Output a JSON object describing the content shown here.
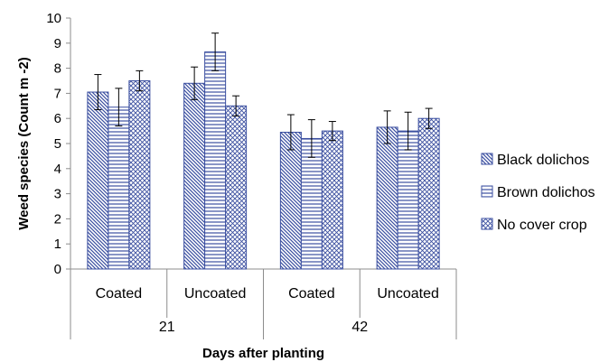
{
  "chart_data": {
    "type": "bar",
    "title": "",
    "ylabel": "Weed species (Count m -2)",
    "xlabel": "Days after planting",
    "ylim": [
      0,
      10
    ],
    "yticks": [
      0,
      1,
      2,
      3,
      4,
      5,
      6,
      7,
      8,
      9,
      10
    ],
    "groups": [
      {
        "label": "21",
        "categories": [
          "Coated",
          "Uncoated"
        ]
      },
      {
        "label": "42",
        "categories": [
          "Coated",
          "Uncoated"
        ]
      }
    ],
    "categories": [
      "Coated",
      "Uncoated",
      "Coated",
      "Uncoated"
    ],
    "series": [
      {
        "name": "Black dolichos",
        "pattern": "diagonal",
        "color": "#3B4FA0",
        "values": [
          7.05,
          7.4,
          5.45,
          5.65
        ],
        "errors": [
          0.7,
          0.65,
          0.7,
          0.65
        ]
      },
      {
        "name": "Brown dolichos",
        "pattern": "horizontal",
        "color": "#3B4FA0",
        "values": [
          6.45,
          8.65,
          5.2,
          5.5
        ],
        "errors": [
          0.75,
          0.75,
          0.75,
          0.75
        ]
      },
      {
        "name": "No cover crop",
        "pattern": "crosshatch",
        "color": "#3B4FA0",
        "values": [
          7.5,
          6.5,
          5.5,
          6.0
        ],
        "errors": [
          0.4,
          0.4,
          0.38,
          0.4
        ]
      }
    ],
    "grid": false,
    "legend": "right"
  }
}
